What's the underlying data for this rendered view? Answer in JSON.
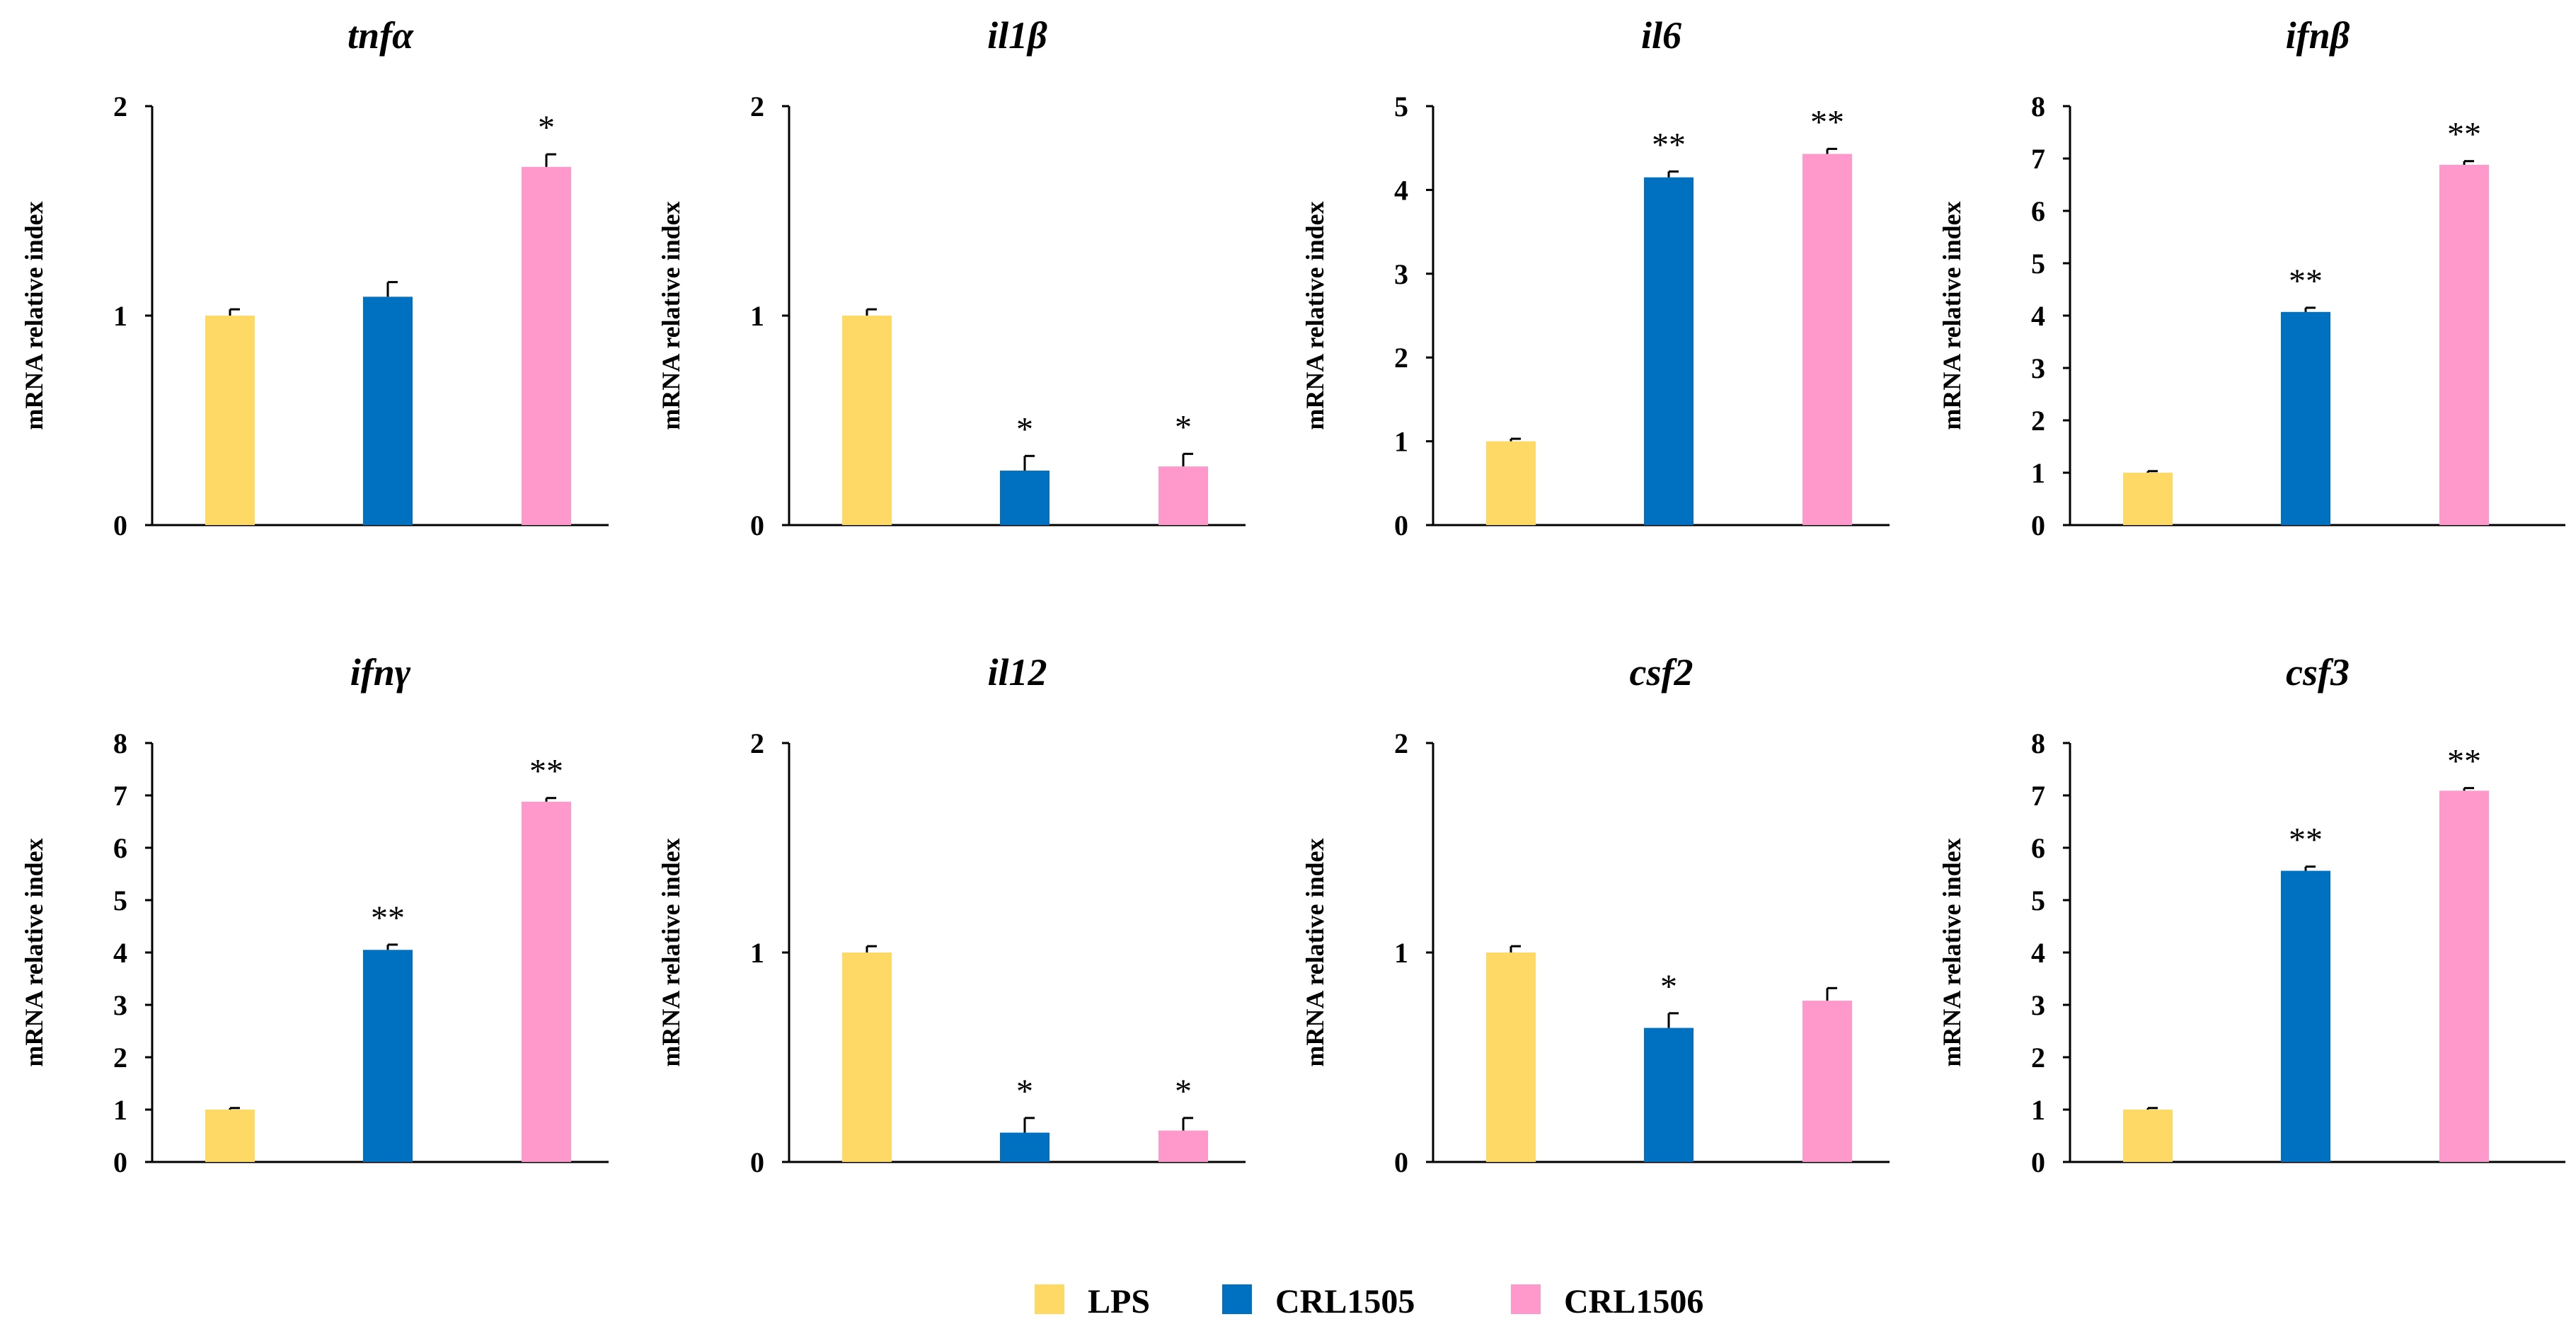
{
  "chart_data": [
    {
      "type": "bar",
      "title": "tnfα",
      "ylabel": "mRNA relative index",
      "xlabel": "",
      "categories": [
        "LPS",
        "CRL1505",
        "CRL1506"
      ],
      "values": [
        1.0,
        1.09,
        1.71
      ],
      "errors": [
        0.03,
        0.07,
        0.06
      ],
      "significance": [
        "",
        "",
        "*"
      ],
      "ylim": [
        0,
        2
      ],
      "yticks": [
        0,
        1,
        2
      ]
    },
    {
      "type": "bar",
      "title": "il1β",
      "ylabel": "mRNA relative index",
      "xlabel": "",
      "categories": [
        "LPS",
        "CRL1505",
        "CRL1506"
      ],
      "values": [
        1.0,
        0.26,
        0.28
      ],
      "errors": [
        0.03,
        0.07,
        0.06
      ],
      "significance": [
        "",
        "*",
        "*"
      ],
      "ylim": [
        0,
        2
      ],
      "yticks": [
        0,
        1,
        2
      ]
    },
    {
      "type": "bar",
      "title": "il6",
      "ylabel": "mRNA relative index",
      "xlabel": "",
      "categories": [
        "LPS",
        "CRL1505",
        "CRL1506"
      ],
      "values": [
        1.0,
        4.15,
        4.43
      ],
      "errors": [
        0.03,
        0.07,
        0.06
      ],
      "significance": [
        "",
        "**",
        "**"
      ],
      "ylim": [
        0,
        5
      ],
      "yticks": [
        0,
        1,
        2,
        3,
        4,
        5
      ]
    },
    {
      "type": "bar",
      "title": "ifnβ",
      "ylabel": "mRNA relative index",
      "xlabel": "",
      "categories": [
        "LPS",
        "CRL1505",
        "CRL1506"
      ],
      "values": [
        1.0,
        4.07,
        6.88
      ],
      "errors": [
        0.03,
        0.08,
        0.07
      ],
      "significance": [
        "",
        "**",
        "**"
      ],
      "ylim": [
        0,
        8
      ],
      "yticks": [
        0,
        1,
        2,
        3,
        4,
        5,
        6,
        7,
        8
      ]
    },
    {
      "type": "bar",
      "title": "ifnγ",
      "ylabel": "mRNA relative index",
      "xlabel": "",
      "categories": [
        "LPS",
        "CRL1505",
        "CRL1506"
      ],
      "values": [
        1.0,
        4.05,
        6.88
      ],
      "errors": [
        0.03,
        0.1,
        0.07
      ],
      "significance": [
        "",
        "**",
        "**"
      ],
      "ylim": [
        0,
        8
      ],
      "yticks": [
        0,
        1,
        2,
        3,
        4,
        5,
        6,
        7,
        8
      ]
    },
    {
      "type": "bar",
      "title": "il12",
      "ylabel": "mRNA relative index",
      "xlabel": "",
      "categories": [
        "LPS",
        "CRL1505",
        "CRL1506"
      ],
      "values": [
        1.0,
        0.14,
        0.15
      ],
      "errors": [
        0.03,
        0.07,
        0.06
      ],
      "significance": [
        "",
        "*",
        "*"
      ],
      "ylim": [
        0,
        2
      ],
      "yticks": [
        0,
        1,
        2
      ]
    },
    {
      "type": "bar",
      "title": "csf2",
      "ylabel": "mRNA relative index",
      "xlabel": "",
      "categories": [
        "LPS",
        "CRL1505",
        "CRL1506"
      ],
      "values": [
        1.0,
        0.64,
        0.77
      ],
      "errors": [
        0.03,
        0.07,
        0.06
      ],
      "significance": [
        "",
        "*",
        ""
      ],
      "ylim": [
        0,
        2
      ],
      "yticks": [
        0,
        1,
        2
      ]
    },
    {
      "type": "bar",
      "title": "csf3",
      "ylabel": "mRNA relative index",
      "xlabel": "",
      "categories": [
        "LPS",
        "CRL1505",
        "CRL1506"
      ],
      "values": [
        1.0,
        5.56,
        7.09
      ],
      "errors": [
        0.03,
        0.08,
        0.05
      ],
      "significance": [
        "",
        "**",
        "**"
      ],
      "ylim": [
        0,
        8
      ],
      "yticks": [
        0,
        1,
        2,
        3,
        4,
        5,
        6,
        7,
        8
      ]
    }
  ],
  "legend": {
    "placement": "bottom-center",
    "items": [
      {
        "label": "LPS",
        "color": "#FFD966"
      },
      {
        "label": "CRL1505",
        "color": "#0070C0"
      },
      {
        "label": "CRL1506",
        "color": "#FF99CC"
      }
    ]
  },
  "colors": {
    "axis": "#000000",
    "error_bar": "#000000"
  }
}
